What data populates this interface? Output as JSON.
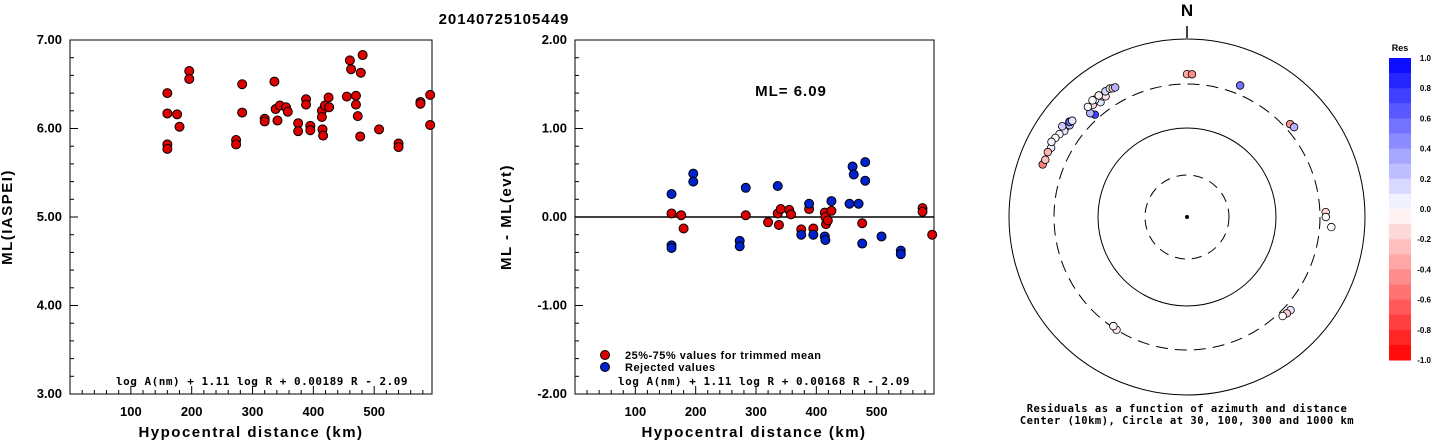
{
  "title": "20140725105449",
  "chart_data": [
    {
      "type": "scatter",
      "ylabel": "ML(IASPEI)",
      "xlabel": "Hypocentral distance (km)",
      "xlim": [
        0,
        595
      ],
      "ylim": [
        3.0,
        7.0
      ],
      "xticks": [
        "100",
        "200",
        "300",
        "400",
        "500"
      ],
      "yticks": [
        "3.00",
        "4.00",
        "5.00",
        "6.00",
        "7.00"
      ],
      "formula": "log A(nm) + 1.11 log R + 0.00189 R - 2.09",
      "points": [
        {
          "x": 160,
          "y": 6.4
        },
        {
          "x": 160,
          "y": 6.17
        },
        {
          "x": 160,
          "y": 5.82
        },
        {
          "x": 160,
          "y": 5.77
        },
        {
          "x": 176,
          "y": 6.16
        },
        {
          "x": 180,
          "y": 6.02
        },
        {
          "x": 196,
          "y": 6.65
        },
        {
          "x": 196,
          "y": 6.56
        },
        {
          "x": 273,
          "y": 5.87
        },
        {
          "x": 273,
          "y": 5.82
        },
        {
          "x": 283,
          "y": 6.5
        },
        {
          "x": 283,
          "y": 6.18
        },
        {
          "x": 320,
          "y": 6.11
        },
        {
          "x": 320,
          "y": 6.08
        },
        {
          "x": 336,
          "y": 6.53
        },
        {
          "x": 338,
          "y": 6.22
        },
        {
          "x": 341,
          "y": 6.09
        },
        {
          "x": 345,
          "y": 6.26
        },
        {
          "x": 355,
          "y": 6.24
        },
        {
          "x": 358,
          "y": 6.19
        },
        {
          "x": 375,
          "y": 6.06
        },
        {
          "x": 375,
          "y": 5.97
        },
        {
          "x": 388,
          "y": 6.33
        },
        {
          "x": 388,
          "y": 6.27
        },
        {
          "x": 395,
          "y": 6.03
        },
        {
          "x": 395,
          "y": 5.98
        },
        {
          "x": 414,
          "y": 6.2
        },
        {
          "x": 414,
          "y": 6.13
        },
        {
          "x": 415,
          "y": 5.99
        },
        {
          "x": 416,
          "y": 5.92
        },
        {
          "x": 419,
          "y": 6.26
        },
        {
          "x": 425,
          "y": 6.35
        },
        {
          "x": 426,
          "y": 6.24
        },
        {
          "x": 455,
          "y": 6.36
        },
        {
          "x": 460,
          "y": 6.77
        },
        {
          "x": 462,
          "y": 6.67
        },
        {
          "x": 470,
          "y": 6.37
        },
        {
          "x": 470,
          "y": 6.27
        },
        {
          "x": 473,
          "y": 6.14
        },
        {
          "x": 477,
          "y": 5.91
        },
        {
          "x": 478,
          "y": 6.63
        },
        {
          "x": 481,
          "y": 6.83
        },
        {
          "x": 508,
          "y": 5.99
        },
        {
          "x": 540,
          "y": 5.83
        },
        {
          "x": 540,
          "y": 5.79
        },
        {
          "x": 576,
          "y": 6.3
        },
        {
          "x": 576,
          "y": 6.28
        },
        {
          "x": 592,
          "y": 6.38
        },
        {
          "x": 592,
          "y": 6.04
        }
      ]
    },
    {
      "type": "scatter",
      "ylabel": "ML - ML(evt)",
      "xlabel": "Hypocentral distance (km)",
      "xlim": [
        0,
        595
      ],
      "ylim": [
        -2.0,
        2.0
      ],
      "xticks": [
        "100",
        "200",
        "300",
        "400",
        "500"
      ],
      "yticks": [
        "-2.00",
        "-1.00",
        "0.00",
        "1.00",
        "2.00"
      ],
      "annotation": "ML= 6.09",
      "formula": "log A(nm) + 1.11 log R + 0.00168 R - 2.09",
      "legend": [
        "25%-75% values for trimmed mean",
        "Rejected values"
      ],
      "colors": {
        "accepted": "#dd0000",
        "rejected": "#0022cc"
      },
      "series": [
        {
          "name": "25%-75% values for trimmed mean",
          "points": [
            {
              "x": 160,
              "y": 0.04
            },
            {
              "x": 176,
              "y": 0.02
            },
            {
              "x": 180,
              "y": -0.13
            },
            {
              "x": 283,
              "y": 0.02
            },
            {
              "x": 320,
              "y": -0.06
            },
            {
              "x": 336,
              "y": 0.04
            },
            {
              "x": 338,
              "y": -0.09
            },
            {
              "x": 341,
              "y": 0.09
            },
            {
              "x": 355,
              "y": 0.08
            },
            {
              "x": 358,
              "y": 0.03
            },
            {
              "x": 375,
              "y": -0.14
            },
            {
              "x": 388,
              "y": 0.09
            },
            {
              "x": 395,
              "y": -0.13
            },
            {
              "x": 414,
              "y": 0.05
            },
            {
              "x": 415,
              "y": 0.0
            },
            {
              "x": 416,
              "y": -0.08
            },
            {
              "x": 419,
              "y": -0.04
            },
            {
              "x": 425,
              "y": 0.07
            },
            {
              "x": 476,
              "y": -0.07
            },
            {
              "x": 576,
              "y": 0.1
            },
            {
              "x": 576,
              "y": 0.06
            },
            {
              "x": 592,
              "y": -0.2
            }
          ]
        },
        {
          "name": "Rejected values",
          "points": [
            {
              "x": 160,
              "y": 0.26
            },
            {
              "x": 160,
              "y": -0.32
            },
            {
              "x": 160,
              "y": -0.35
            },
            {
              "x": 196,
              "y": 0.49
            },
            {
              "x": 196,
              "y": 0.4
            },
            {
              "x": 273,
              "y": -0.27
            },
            {
              "x": 273,
              "y": -0.33
            },
            {
              "x": 283,
              "y": 0.33
            },
            {
              "x": 336,
              "y": 0.35
            },
            {
              "x": 375,
              "y": -0.2
            },
            {
              "x": 388,
              "y": 0.15
            },
            {
              "x": 395,
              "y": -0.2
            },
            {
              "x": 414,
              "y": -0.22
            },
            {
              "x": 415,
              "y": -0.26
            },
            {
              "x": 425,
              "y": 0.18
            },
            {
              "x": 455,
              "y": 0.15
            },
            {
              "x": 460,
              "y": 0.57
            },
            {
              "x": 462,
              "y": 0.48
            },
            {
              "x": 470,
              "y": 0.15
            },
            {
              "x": 476,
              "y": -0.3
            },
            {
              "x": 481,
              "y": 0.62
            },
            {
              "x": 481,
              "y": 0.41
            },
            {
              "x": 508,
              "y": -0.22
            },
            {
              "x": 540,
              "y": -0.38
            },
            {
              "x": 540,
              "y": -0.42
            }
          ]
        }
      ]
    },
    {
      "type": "scatter",
      "polar": true,
      "north_label": "N",
      "caption_line1": "Residuals as a function of azimuth and distance",
      "caption_line2": "Center (10km), Circle at 30, 100, 300 and 1000 km",
      "circles_km": [
        30,
        100,
        300,
        1000
      ],
      "colorbar_title": "Res",
      "colorbar_ticks": [
        "1.0",
        "0.8",
        "0.6",
        "0.4",
        "0.2",
        "0.0",
        "-0.2",
        "-0.4",
        "-0.6",
        "-0.8",
        "-1.0"
      ],
      "colorbar_range": [
        -1.0,
        1.0
      ],
      "stations": [
        {
          "az": 307,
          "dist": 480,
          "res": 0.0
        },
        {
          "az": 305,
          "dist": 470,
          "res": 0.1
        },
        {
          "az": 303,
          "dist": 500,
          "res": 0.05
        },
        {
          "az": 308,
          "dist": 460,
          "res": 0.25
        },
        {
          "az": 301,
          "dist": 520,
          "res": -0.05
        },
        {
          "az": 309,
          "dist": 490,
          "res": -0.15
        },
        {
          "az": 297,
          "dist": 505,
          "res": 0.05
        },
        {
          "az": 295,
          "dist": 520,
          "res": -0.3
        },
        {
          "az": 299,
          "dist": 540,
          "res": 0.05
        },
        {
          "az": 306,
          "dist": 530,
          "res": 0.2
        },
        {
          "az": 309,
          "dist": 485,
          "res": 0.55
        },
        {
          "az": 310,
          "dist": 470,
          "res": 0.1
        },
        {
          "az": 318,
          "dist": 340,
          "res": 0.75
        },
        {
          "az": 317,
          "dist": 380,
          "res": 0.3
        },
        {
          "az": 323,
          "dist": 400,
          "res": 0.1
        },
        {
          "az": 320,
          "dist": 430,
          "res": -0.15
        },
        {
          "az": 322,
          "dist": 460,
          "res": 0.0
        },
        {
          "az": 325,
          "dist": 440,
          "res": 0.2
        },
        {
          "az": 326,
          "dist": 420,
          "res": -0.1
        },
        {
          "az": 327,
          "dist": 470,
          "res": 0.15
        },
        {
          "az": 318,
          "dist": 450,
          "res": 0.05
        },
        {
          "az": 324,
          "dist": 475,
          "res": -0.05
        },
        {
          "az": 329,
          "dist": 470,
          "res": 0.1
        },
        {
          "az": 330,
          "dist": 455,
          "res": -0.2
        },
        {
          "az": 321,
          "dist": 475,
          "res": 0.0
        },
        {
          "az": 331,
          "dist": 450,
          "res": 0.3
        },
        {
          "az": 0,
          "dist": 390,
          "res": -0.35
        },
        {
          "az": 2,
          "dist": 390,
          "res": -0.45
        },
        {
          "az": 22,
          "dist": 380,
          "res": 0.55
        },
        {
          "az": 48,
          "dist": 350,
          "res": -0.45
        },
        {
          "az": 50,
          "dist": 360,
          "res": 0.3
        },
        {
          "az": 88,
          "dist": 350,
          "res": -0.15
        },
        {
          "az": 90,
          "dist": 350,
          "res": 0.0
        },
        {
          "az": 94,
          "dist": 410,
          "res": 0.0
        },
        {
          "az": 132,
          "dist": 355,
          "res": 0.1
        },
        {
          "az": 134,
          "dist": 350,
          "res": -0.2
        },
        {
          "az": 136,
          "dist": 340,
          "res": 0.0
        },
        {
          "az": 212,
          "dist": 300,
          "res": -0.1
        },
        {
          "az": 214,
          "dist": 290,
          "res": 0.0
        },
        {
          "az": 290,
          "dist": 520,
          "res": -0.5
        },
        {
          "az": 292,
          "dist": 510,
          "res": -0.25
        }
      ]
    }
  ]
}
